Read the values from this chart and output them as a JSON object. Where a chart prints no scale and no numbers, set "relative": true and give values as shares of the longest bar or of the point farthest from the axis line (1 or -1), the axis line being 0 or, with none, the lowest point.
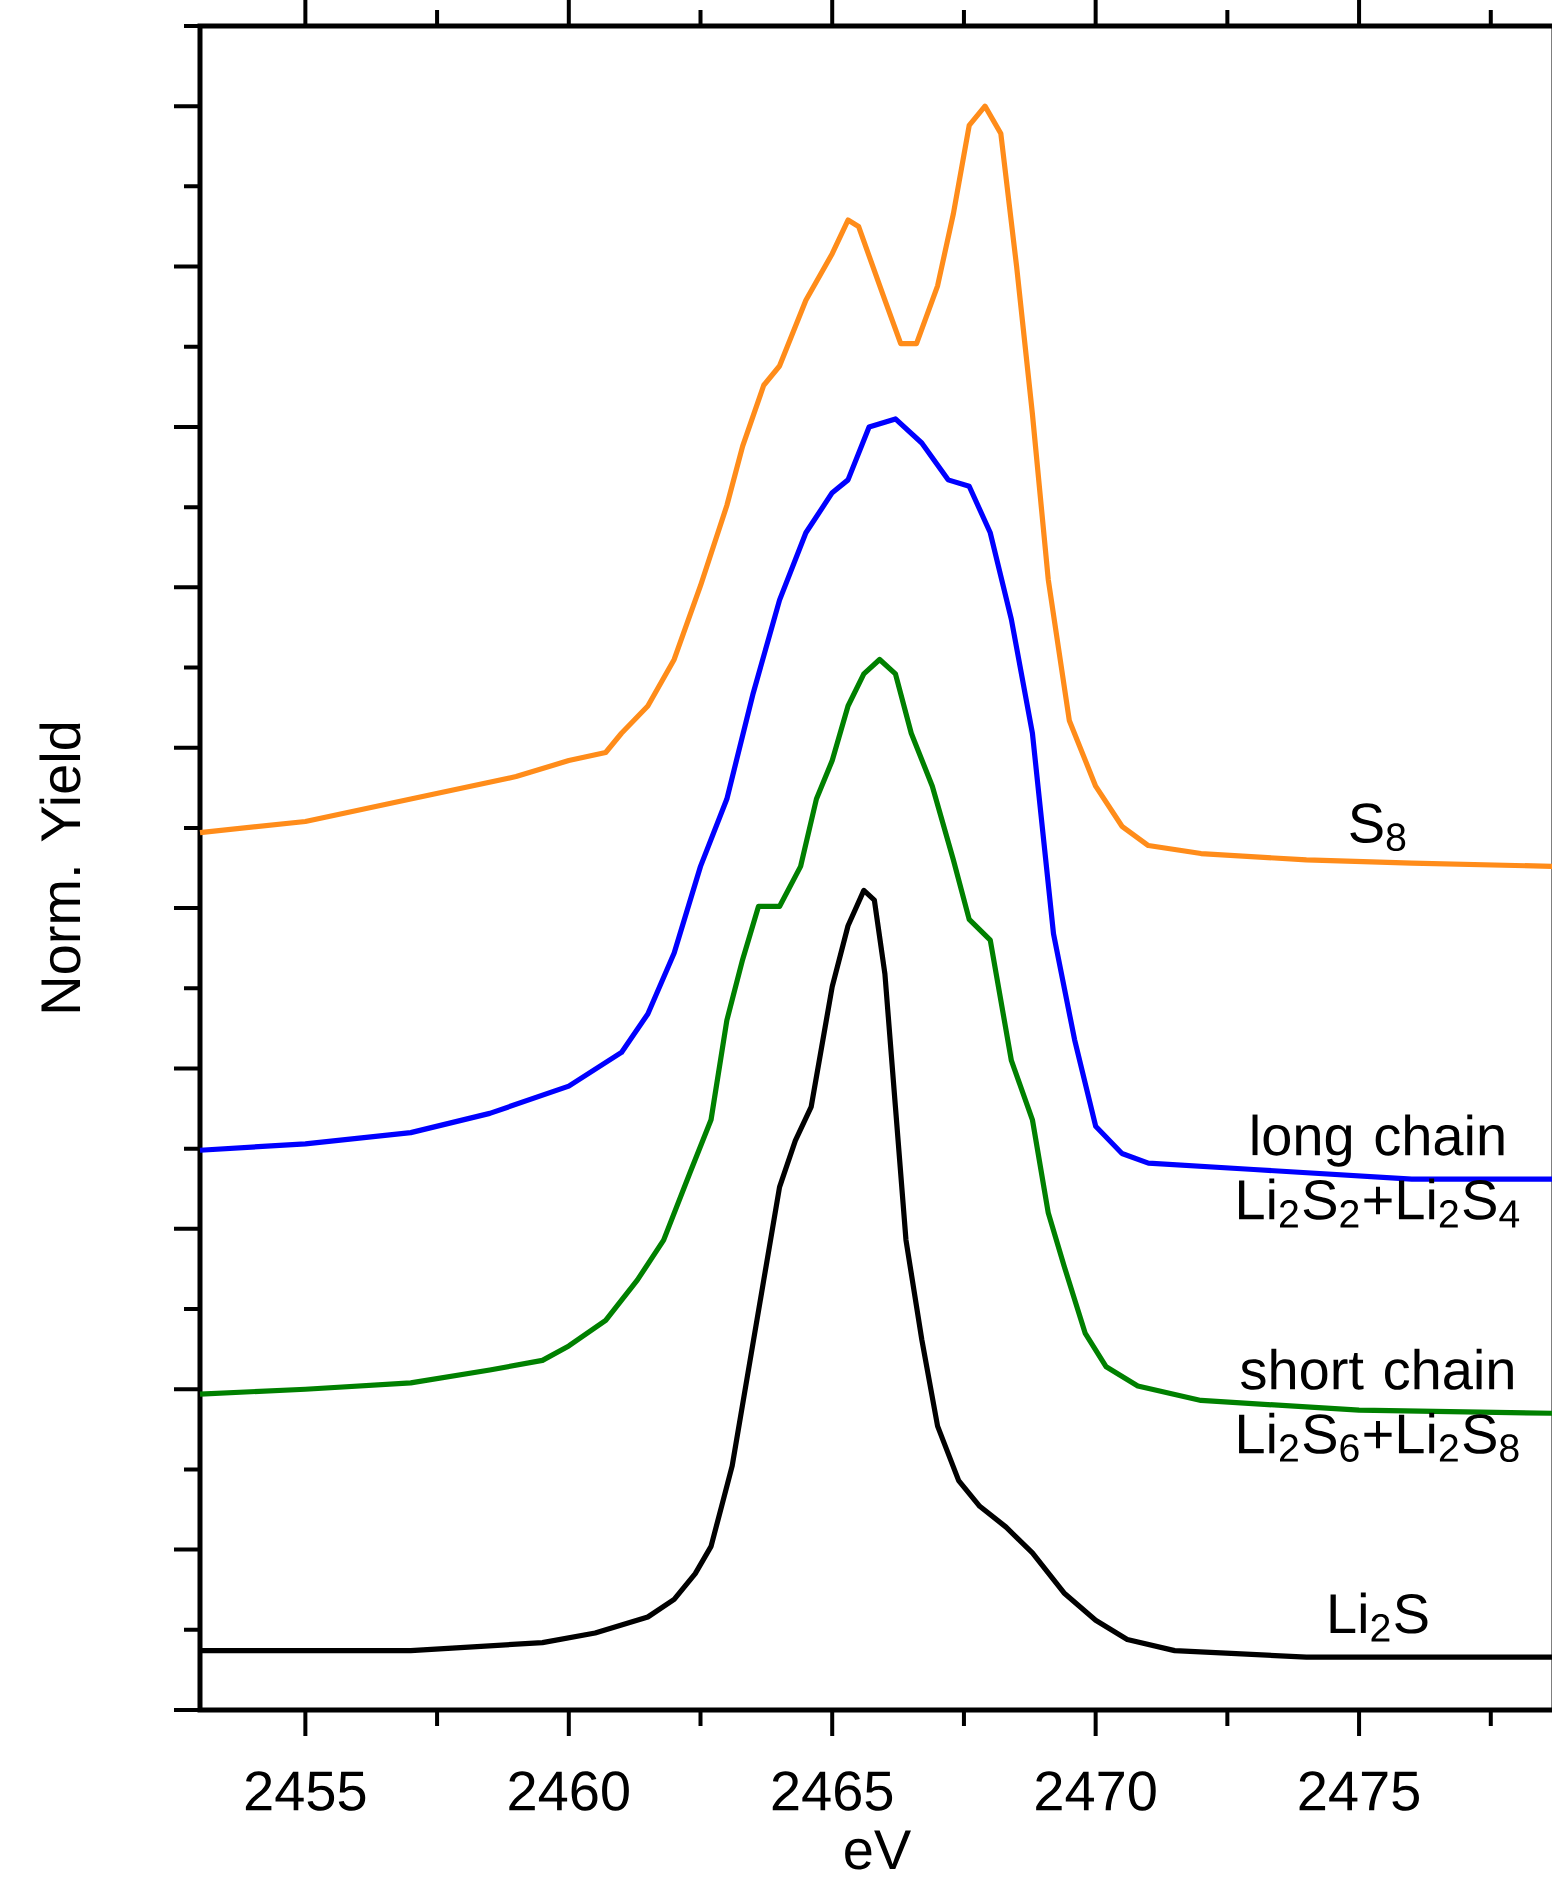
{
  "chart_data": {
    "type": "line",
    "relative": true,
    "xlabel": "eV",
    "ylabel": "Norm. Yield",
    "xlim": [
      2453,
      2478.7
    ],
    "xticks": [
      2455,
      {
        "value": 2457.5,
        "label": null
      },
      2460,
      {
        "value": 2462.5,
        "label": null
      },
      2465,
      {
        "value": 2467.5,
        "label": null
      },
      2470,
      {
        "value": 2472.5,
        "label": null
      },
      2475,
      {
        "value": 2477.5,
        "label": null
      }
    ],
    "series": [
      {
        "name": "S$_{8}$",
        "color": "#ff8c1a",
        "x": [
          2453,
          2455,
          2457,
          2459,
          2460,
          2460.7,
          2461,
          2461.5,
          2462,
          2462.5,
          2463,
          2463.3,
          2463.7,
          2464,
          2464.5,
          2465,
          2465.3,
          2465.5,
          2466,
          2466.3,
          2466.6,
          2467,
          2467.3,
          2467.6,
          2467.9,
          2468.2,
          2468.5,
          2468.8,
          2469.1,
          2469.5,
          2470,
          2470.5,
          2471,
          2472,
          2474,
          2476,
          2478.7
        ],
        "values": [
          0.547,
          0.554,
          0.568,
          0.582,
          0.592,
          0.597,
          0.609,
          0.626,
          0.655,
          0.701,
          0.751,
          0.788,
          0.826,
          0.838,
          0.879,
          0.908,
          0.929,
          0.925,
          0.879,
          0.852,
          0.852,
          0.888,
          0.933,
          0.988,
          1.0,
          0.983,
          0.9,
          0.808,
          0.705,
          0.617,
          0.576,
          0.551,
          0.539,
          0.534,
          0.53,
          0.528,
          0.526
        ]
      },
      {
        "name": "long chain Li$_{2}$S$_{2}$+Li$_{2}$S$_{4}$",
        "color": "#0000ff",
        "x": [
          2453,
          2455,
          2457,
          2458.5,
          2460,
          2461,
          2461.5,
          2462,
          2462.5,
          2463,
          2463.5,
          2464,
          2464.5,
          2465,
          2465.3,
          2465.7,
          2466.2,
          2466.7,
          2467.2,
          2467.6,
          2468,
          2468.4,
          2468.8,
          2469.2,
          2469.6,
          2470,
          2470.5,
          2471,
          2473,
          2476,
          2478.7
        ],
        "values": [
          0.349,
          0.353,
          0.36,
          0.372,
          0.389,
          0.41,
          0.434,
          0.472,
          0.526,
          0.568,
          0.634,
          0.692,
          0.734,
          0.759,
          0.767,
          0.8,
          0.805,
          0.79,
          0.767,
          0.763,
          0.734,
          0.68,
          0.609,
          0.484,
          0.418,
          0.364,
          0.347,
          0.341,
          0.337,
          0.331,
          0.331
        ]
      },
      {
        "name": "short chain Li$_{2}$S$_{6}$+Li$_{2}$S$_{8}$",
        "color": "#008000",
        "x": [
          2453,
          2455,
          2457,
          2458.5,
          2459.5,
          2460,
          2460.7,
          2461.3,
          2461.8,
          2462.3,
          2462.7,
          2463,
          2463.3,
          2463.6,
          2464,
          2464.4,
          2464.7,
          2465,
          2465.3,
          2465.6,
          2465.9,
          2466.2,
          2466.5,
          2466.9,
          2467.3,
          2467.6,
          2468,
          2468.4,
          2468.8,
          2469.1,
          2469.4,
          2469.8,
          2470.2,
          2470.8,
          2472,
          2475,
          2478.7
        ],
        "values": [
          0.197,
          0.2,
          0.204,
          0.212,
          0.218,
          0.227,
          0.243,
          0.268,
          0.293,
          0.335,
          0.368,
          0.43,
          0.468,
          0.501,
          0.501,
          0.526,
          0.568,
          0.592,
          0.626,
          0.646,
          0.655,
          0.646,
          0.609,
          0.576,
          0.53,
          0.493,
          0.48,
          0.405,
          0.368,
          0.31,
          0.277,
          0.235,
          0.214,
          0.202,
          0.193,
          0.187,
          0.185
        ]
      },
      {
        "name": "Li$_{2}$S",
        "color": "#000000",
        "x": [
          2453,
          2457,
          2459.5,
          2460.5,
          2461.5,
          2462,
          2462.4,
          2462.7,
          2462.9,
          2463.1,
          2463.4,
          2463.7,
          2464,
          2464.3,
          2464.6,
          2465,
          2465.3,
          2465.6,
          2465.8,
          2466,
          2466.2,
          2466.4,
          2466.7,
          2467,
          2467.4,
          2467.8,
          2468.3,
          2468.8,
          2469.4,
          2470,
          2470.6,
          2471.5,
          2474,
          2478.7
        ],
        "values": [
          0.037,
          0.037,
          0.042,
          0.048,
          0.058,
          0.069,
          0.085,
          0.102,
          0.127,
          0.152,
          0.21,
          0.268,
          0.326,
          0.355,
          0.376,
          0.451,
          0.489,
          0.511,
          0.505,
          0.459,
          0.376,
          0.293,
          0.231,
          0.177,
          0.143,
          0.127,
          0.114,
          0.098,
          0.073,
          0.056,
          0.044,
          0.037,
          0.033,
          0.033
        ]
      }
    ]
  }
}
